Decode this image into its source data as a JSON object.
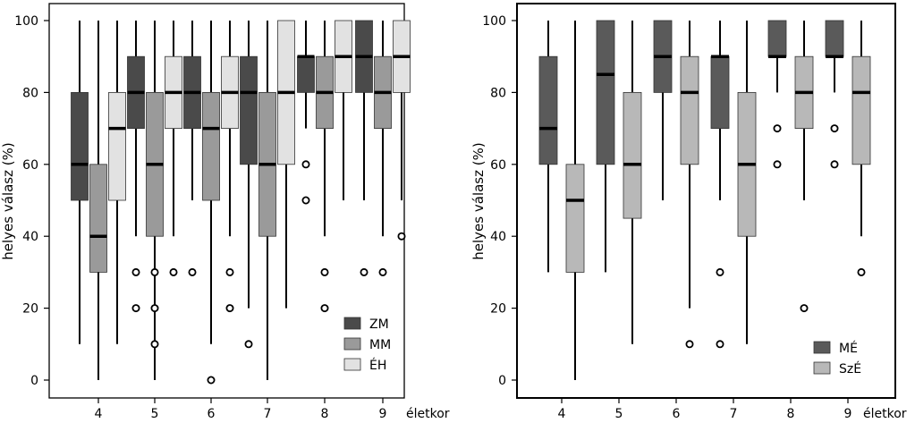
{
  "chart_data": [
    {
      "type": "boxplot",
      "ylabel": "helyes válasz (%)",
      "xlabel": "életkor",
      "ylim": [
        0,
        100
      ],
      "yticks": [
        0,
        20,
        40,
        60,
        80,
        100
      ],
      "categories": [
        "4",
        "5",
        "6",
        "7",
        "8",
        "9"
      ],
      "legend_position": "bottom-right",
      "series": [
        {
          "name": "ZM",
          "color": "#4a4a4a",
          "boxes": [
            {
              "x": "4",
              "min": 10,
              "q1": 50,
              "median": 60,
              "q3": 80,
              "max": 100,
              "outliers": []
            },
            {
              "x": "5",
              "min": 40,
              "q1": 70,
              "median": 80,
              "q3": 90,
              "max": 100,
              "outliers": [
                30,
                20
              ]
            },
            {
              "x": "6",
              "min": 50,
              "q1": 70,
              "median": 80,
              "q3": 90,
              "max": 100,
              "outliers": [
                30
              ]
            },
            {
              "x": "7",
              "min": 20,
              "q1": 60,
              "median": 80,
              "q3": 90,
              "max": 100,
              "outliers": [
                10
              ]
            },
            {
              "x": "8",
              "min": 70,
              "q1": 80,
              "median": 90,
              "q3": 90,
              "max": 100,
              "outliers": [
                60,
                50
              ]
            },
            {
              "x": "9",
              "min": 50,
              "q1": 80,
              "median": 90,
              "q3": 100,
              "max": 100,
              "outliers": [
                30
              ]
            }
          ]
        },
        {
          "name": "MM",
          "color": "#9a9a9a",
          "boxes": [
            {
              "x": "4",
              "min": 0,
              "q1": 30,
              "median": 40,
              "q3": 60,
              "max": 100,
              "outliers": []
            },
            {
              "x": "5",
              "min": 0,
              "q1": 40,
              "median": 60,
              "q3": 80,
              "max": 100,
              "outliers": [
                30,
                20,
                10
              ]
            },
            {
              "x": "6",
              "min": 10,
              "q1": 50,
              "median": 70,
              "q3": 80,
              "max": 100,
              "outliers": [
                0
              ]
            },
            {
              "x": "7",
              "min": 0,
              "q1": 40,
              "median": 60,
              "q3": 80,
              "max": 100,
              "outliers": []
            },
            {
              "x": "8",
              "min": 40,
              "q1": 70,
              "median": 80,
              "q3": 90,
              "max": 100,
              "outliers": [
                30,
                20
              ]
            },
            {
              "x": "9",
              "min": 40,
              "q1": 70,
              "median": 80,
              "q3": 90,
              "max": 100,
              "outliers": [
                30
              ]
            }
          ]
        },
        {
          "name": "ÉH",
          "color": "#e2e2e2",
          "boxes": [
            {
              "x": "4",
              "min": 10,
              "q1": 50,
              "median": 70,
              "q3": 80,
              "max": 100,
              "outliers": []
            },
            {
              "x": "5",
              "min": 40,
              "q1": 70,
              "median": 80,
              "q3": 90,
              "max": 100,
              "outliers": [
                30
              ]
            },
            {
              "x": "6",
              "min": 40,
              "q1": 70,
              "median": 80,
              "q3": 90,
              "max": 100,
              "outliers": [
                30,
                20
              ]
            },
            {
              "x": "7",
              "min": 20,
              "q1": 60,
              "median": 80,
              "q3": 100,
              "max": 100,
              "outliers": []
            },
            {
              "x": "8",
              "min": 50,
              "q1": 80,
              "median": 90,
              "q3": 100,
              "max": 100,
              "outliers": []
            },
            {
              "x": "9",
              "min": 50,
              "q1": 80,
              "median": 90,
              "q3": 100,
              "max": 100,
              "outliers": [
                40
              ]
            }
          ]
        }
      ]
    },
    {
      "type": "boxplot",
      "ylabel": "helyes válasz (%)",
      "xlabel": "életkor",
      "ylim": [
        0,
        100
      ],
      "yticks": [
        0,
        20,
        40,
        60,
        80,
        100
      ],
      "categories": [
        "4",
        "5",
        "6",
        "7",
        "8",
        "9"
      ],
      "legend_position": "bottom-right",
      "series": [
        {
          "name": "MÉ",
          "color": "#5a5a5a",
          "boxes": [
            {
              "x": "4",
              "min": 30,
              "q1": 60,
              "median": 70,
              "q3": 90,
              "max": 100,
              "outliers": []
            },
            {
              "x": "5",
              "min": 30,
              "q1": 60,
              "median": 85,
              "q3": 100,
              "max": 100,
              "outliers": []
            },
            {
              "x": "6",
              "min": 50,
              "q1": 80,
              "median": 90,
              "q3": 100,
              "max": 100,
              "outliers": []
            },
            {
              "x": "7",
              "min": 50,
              "q1": 70,
              "median": 90,
              "q3": 90,
              "max": 100,
              "outliers": [
                30,
                10
              ]
            },
            {
              "x": "8",
              "min": 80,
              "q1": 90,
              "median": 90,
              "q3": 100,
              "max": 100,
              "outliers": [
                70,
                60
              ]
            },
            {
              "x": "9",
              "min": 80,
              "q1": 90,
              "median": 90,
              "q3": 100,
              "max": 100,
              "outliers": [
                70,
                60
              ]
            }
          ]
        },
        {
          "name": "SzÉ",
          "color": "#b8b8b8",
          "boxes": [
            {
              "x": "4",
              "min": 0,
              "q1": 30,
              "median": 50,
              "q3": 60,
              "max": 100,
              "outliers": []
            },
            {
              "x": "5",
              "min": 10,
              "q1": 45,
              "median": 60,
              "q3": 80,
              "max": 100,
              "outliers": []
            },
            {
              "x": "6",
              "min": 20,
              "q1": 60,
              "median": 80,
              "q3": 90,
              "max": 100,
              "outliers": [
                10
              ]
            },
            {
              "x": "7",
              "min": 10,
              "q1": 40,
              "median": 60,
              "q3": 80,
              "max": 100,
              "outliers": []
            },
            {
              "x": "8",
              "min": 50,
              "q1": 70,
              "median": 80,
              "q3": 90,
              "max": 100,
              "outliers": [
                20
              ]
            },
            {
              "x": "9",
              "min": 40,
              "q1": 60,
              "median": 80,
              "q3": 90,
              "max": 100,
              "outliers": [
                30
              ]
            }
          ]
        }
      ]
    }
  ]
}
